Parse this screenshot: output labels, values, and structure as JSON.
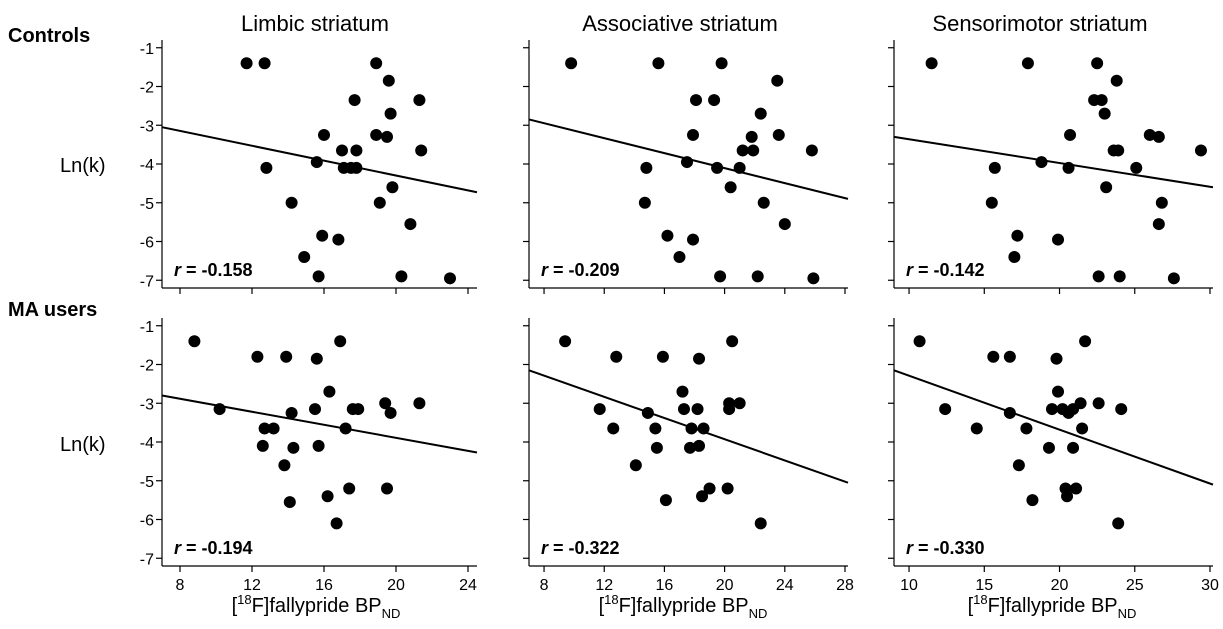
{
  "column_titles": [
    "Limbic striatum",
    "Associative striatum",
    "Sensorimotor striatum"
  ],
  "row_titles": [
    "Controls",
    "MA users"
  ],
  "ylabel": "Ln(k)",
  "xlabel": {
    "pre": "[",
    "sup": "18",
    "main": "F]fallypride BP",
    "sub": "ND"
  },
  "chart_data": [
    {
      "type": "scatter",
      "row": 0,
      "col": 0,
      "xlim": [
        7,
        24.5
      ],
      "ylim": [
        -7.2,
        -0.8
      ],
      "xticks": [
        8,
        12,
        16,
        20,
        24
      ],
      "yticks": [
        -1,
        -2,
        -3,
        -4,
        -5,
        -6,
        -7
      ],
      "show_x_tick_labels": false,
      "show_y_tick_labels": true,
      "r_prefix": "r",
      "r_value": " = -0.158",
      "fit": {
        "x": [
          7,
          24.5
        ],
        "y": [
          -3.05,
          -4.73
        ]
      },
      "points": [
        [
          11.7,
          -1.4
        ],
        [
          12.7,
          -1.4
        ],
        [
          12.8,
          -4.1
        ],
        [
          14.2,
          -5.0
        ],
        [
          14.9,
          -6.4
        ],
        [
          15.6,
          -3.95
        ],
        [
          15.7,
          -6.9
        ],
        [
          15.9,
          -5.85
        ],
        [
          16.0,
          -3.25
        ],
        [
          16.8,
          -5.95
        ],
        [
          17.0,
          -3.65
        ],
        [
          17.1,
          -4.1
        ],
        [
          17.5,
          -4.1
        ],
        [
          17.7,
          -2.35
        ],
        [
          17.8,
          -3.65
        ],
        [
          17.8,
          -4.1
        ],
        [
          18.9,
          -1.4
        ],
        [
          18.9,
          -3.25
        ],
        [
          19.1,
          -5.0
        ],
        [
          19.5,
          -3.3
        ],
        [
          19.6,
          -1.85
        ],
        [
          19.7,
          -2.7
        ],
        [
          19.8,
          -4.6
        ],
        [
          20.3,
          -6.9
        ],
        [
          20.8,
          -5.55
        ],
        [
          21.3,
          -2.35
        ],
        [
          21.4,
          -3.65
        ],
        [
          23.0,
          -6.95
        ]
      ]
    },
    {
      "type": "scatter",
      "row": 0,
      "col": 1,
      "xlim": [
        7,
        28.2
      ],
      "ylim": [
        -7.2,
        -0.8
      ],
      "xticks": [
        8,
        12,
        16,
        20,
        24,
        28
      ],
      "yticks": [
        -1,
        -2,
        -3,
        -4,
        -5,
        -6,
        -7
      ],
      "show_x_tick_labels": false,
      "show_y_tick_labels": false,
      "r_prefix": "r",
      "r_value": " = -0.209",
      "fit": {
        "x": [
          7,
          28.2
        ],
        "y": [
          -2.85,
          -4.9
        ]
      },
      "points": [
        [
          9.8,
          -1.4
        ],
        [
          14.7,
          -5.0
        ],
        [
          14.8,
          -4.1
        ],
        [
          15.6,
          -1.4
        ],
        [
          16.2,
          -5.85
        ],
        [
          17.0,
          -6.4
        ],
        [
          17.5,
          -3.95
        ],
        [
          17.9,
          -5.95
        ],
        [
          17.9,
          -3.25
        ],
        [
          18.1,
          -2.35
        ],
        [
          19.3,
          -2.35
        ],
        [
          19.5,
          -4.1
        ],
        [
          19.7,
          -6.9
        ],
        [
          19.8,
          -1.4
        ],
        [
          20.4,
          -4.6
        ],
        [
          21.0,
          -4.1
        ],
        [
          21.2,
          -3.65
        ],
        [
          21.8,
          -3.3
        ],
        [
          21.9,
          -3.65
        ],
        [
          22.2,
          -6.9
        ],
        [
          22.4,
          -2.7
        ],
        [
          22.6,
          -5.0
        ],
        [
          23.5,
          -1.85
        ],
        [
          23.6,
          -3.25
        ],
        [
          24.0,
          -5.55
        ],
        [
          25.8,
          -3.65
        ],
        [
          25.9,
          -6.95
        ]
      ]
    },
    {
      "type": "scatter",
      "row": 0,
      "col": 2,
      "xlim": [
        9,
        30.2
      ],
      "ylim": [
        -7.2,
        -0.8
      ],
      "xticks": [
        10,
        15,
        20,
        25,
        30
      ],
      "yticks": [
        -1,
        -2,
        -3,
        -4,
        -5,
        -6,
        -7
      ],
      "show_x_tick_labels": false,
      "show_y_tick_labels": false,
      "r_prefix": "r",
      "r_value": " = -0.142",
      "fit": {
        "x": [
          9,
          30.2
        ],
        "y": [
          -3.3,
          -4.6
        ]
      },
      "points": [
        [
          11.5,
          -1.4
        ],
        [
          15.5,
          -5.0
        ],
        [
          15.7,
          -4.1
        ],
        [
          17.0,
          -6.4
        ],
        [
          17.2,
          -5.85
        ],
        [
          17.9,
          -1.4
        ],
        [
          18.8,
          -3.95
        ],
        [
          19.9,
          -5.95
        ],
        [
          20.6,
          -4.1
        ],
        [
          20.7,
          -3.25
        ],
        [
          22.3,
          -2.35
        ],
        [
          22.5,
          -1.4
        ],
        [
          22.6,
          -6.9
        ],
        [
          22.8,
          -2.35
        ],
        [
          23.0,
          -2.7
        ],
        [
          23.1,
          -4.6
        ],
        [
          23.6,
          -3.65
        ],
        [
          23.8,
          -1.85
        ],
        [
          23.9,
          -3.65
        ],
        [
          24.0,
          -6.9
        ],
        [
          25.1,
          -4.1
        ],
        [
          26.0,
          -3.25
        ],
        [
          26.6,
          -3.3
        ],
        [
          26.6,
          -5.55
        ],
        [
          26.8,
          -5.0
        ],
        [
          27.6,
          -6.95
        ],
        [
          29.4,
          -3.65
        ]
      ]
    },
    {
      "type": "scatter",
      "row": 1,
      "col": 0,
      "xlim": [
        7,
        24.5
      ],
      "ylim": [
        -7.2,
        -0.8
      ],
      "xticks": [
        8,
        12,
        16,
        20,
        24
      ],
      "yticks": [
        -1,
        -2,
        -3,
        -4,
        -5,
        -6,
        -7
      ],
      "show_x_tick_labels": true,
      "show_y_tick_labels": true,
      "r_prefix": "r",
      "r_value": " = -0.194",
      "fit": {
        "x": [
          7,
          24.5
        ],
        "y": [
          -2.8,
          -4.27
        ]
      },
      "points": [
        [
          8.8,
          -1.4
        ],
        [
          10.2,
          -3.15
        ],
        [
          12.3,
          -1.8
        ],
        [
          12.6,
          -4.1
        ],
        [
          12.7,
          -3.65
        ],
        [
          13.2,
          -3.65
        ],
        [
          13.8,
          -4.6
        ],
        [
          13.9,
          -1.8
        ],
        [
          14.1,
          -5.55
        ],
        [
          14.2,
          -3.25
        ],
        [
          14.3,
          -4.15
        ],
        [
          15.5,
          -3.15
        ],
        [
          15.6,
          -1.85
        ],
        [
          15.7,
          -4.1
        ],
        [
          16.2,
          -5.4
        ],
        [
          16.3,
          -2.7
        ],
        [
          16.7,
          -6.1
        ],
        [
          16.9,
          -1.4
        ],
        [
          17.2,
          -3.65
        ],
        [
          17.4,
          -5.2
        ],
        [
          17.6,
          -3.15
        ],
        [
          17.9,
          -3.15
        ],
        [
          19.4,
          -3.0
        ],
        [
          19.5,
          -5.2
        ],
        [
          19.7,
          -3.25
        ],
        [
          21.3,
          -3.0
        ]
      ]
    },
    {
      "type": "scatter",
      "row": 1,
      "col": 1,
      "xlim": [
        7,
        28.2
      ],
      "ylim": [
        -7.2,
        -0.8
      ],
      "xticks": [
        8,
        12,
        16,
        20,
        24,
        28
      ],
      "yticks": [
        -1,
        -2,
        -3,
        -4,
        -5,
        -6,
        -7
      ],
      "show_x_tick_labels": true,
      "show_y_tick_labels": false,
      "r_prefix": "r",
      "r_value": " = -0.322",
      "fit": {
        "x": [
          7,
          28.2
        ],
        "y": [
          -2.15,
          -5.05
        ]
      },
      "points": [
        [
          9.4,
          -1.4
        ],
        [
          11.7,
          -3.15
        ],
        [
          12.8,
          -1.8
        ],
        [
          12.6,
          -3.65
        ],
        [
          14.1,
          -4.6
        ],
        [
          14.9,
          -3.25
        ],
        [
          15.4,
          -3.65
        ],
        [
          15.5,
          -4.15
        ],
        [
          15.9,
          -1.8
        ],
        [
          16.1,
          -5.5
        ],
        [
          17.2,
          -2.7
        ],
        [
          17.3,
          -3.15
        ],
        [
          17.7,
          -4.15
        ],
        [
          17.8,
          -3.65
        ],
        [
          18.2,
          -3.15
        ],
        [
          18.3,
          -1.85
        ],
        [
          18.3,
          -4.1
        ],
        [
          18.6,
          -3.65
        ],
        [
          18.5,
          -5.4
        ],
        [
          19.0,
          -5.2
        ],
        [
          20.2,
          -5.2
        ],
        [
          20.3,
          -3.0
        ],
        [
          20.3,
          -3.15
        ],
        [
          20.5,
          -1.4
        ],
        [
          21.0,
          -3.0
        ],
        [
          22.4,
          -6.1
        ]
      ]
    },
    {
      "type": "scatter",
      "row": 1,
      "col": 2,
      "xlim": [
        9,
        30.2
      ],
      "ylim": [
        -7.2,
        -0.8
      ],
      "xticks": [
        10,
        15,
        20,
        25,
        30
      ],
      "yticks": [
        -1,
        -2,
        -3,
        -4,
        -5,
        -6,
        -7
      ],
      "show_x_tick_labels": true,
      "show_y_tick_labels": false,
      "r_prefix": "r",
      "r_value": " = -0.330",
      "fit": {
        "x": [
          9,
          30.2
        ],
        "y": [
          -2.15,
          -5.1
        ]
      },
      "points": [
        [
          10.7,
          -1.4
        ],
        [
          12.4,
          -3.15
        ],
        [
          14.5,
          -3.65
        ],
        [
          15.6,
          -1.8
        ],
        [
          16.7,
          -1.8
        ],
        [
          16.7,
          -3.25
        ],
        [
          17.3,
          -4.6
        ],
        [
          17.8,
          -3.65
        ],
        [
          18.2,
          -5.5
        ],
        [
          19.3,
          -4.15
        ],
        [
          19.5,
          -3.15
        ],
        [
          19.9,
          -2.7
        ],
        [
          19.8,
          -1.85
        ],
        [
          20.2,
          -3.15
        ],
        [
          20.4,
          -5.2
        ],
        [
          20.5,
          -5.4
        ],
        [
          20.6,
          -3.25
        ],
        [
          20.9,
          -3.15
        ],
        [
          20.9,
          -4.15
        ],
        [
          21.1,
          -5.2
        ],
        [
          21.4,
          -3.0
        ],
        [
          21.5,
          -3.65
        ],
        [
          21.7,
          -1.4
        ],
        [
          22.6,
          -3.0
        ],
        [
          23.9,
          -6.1
        ],
        [
          24.1,
          -3.15
        ]
      ]
    }
  ]
}
